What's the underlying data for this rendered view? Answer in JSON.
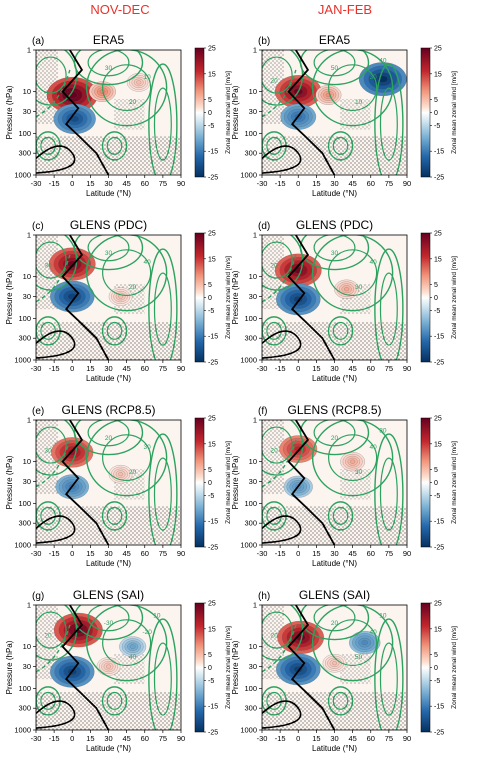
{
  "figure": {
    "column_titles": [
      "NOV-DEC",
      "JAN-FEB"
    ],
    "title_color": "#e8322a"
  },
  "chart_data": [
    {
      "type": "heatmap",
      "panel_letter": "(a)",
      "title": "ERA5",
      "xlabel": "Latitude (°N)",
      "ylabel": "Pressure (hPa)",
      "x_ticks": [
        "-30",
        "-15",
        "0",
        "15",
        "30",
        "45",
        "60",
        "75",
        "90"
      ],
      "y_ticks": [
        "1",
        "10",
        "30",
        "100",
        "300",
        "1000"
      ],
      "xlim": [
        -30,
        90
      ],
      "ylim": [
        1000,
        1
      ],
      "y_scale": "log",
      "colorbar": {
        "label": "Zonal mean zonal wind [m/s]",
        "ticks": [
          "25",
          "15",
          "5",
          "0",
          "-5",
          "-15",
          "-25"
        ],
        "range": [
          -25,
          25
        ]
      },
      "blobs": [
        {
          "lat": 0,
          "p": 12,
          "value": 28
        },
        {
          "lat": 2,
          "p": 45,
          "value": -20
        },
        {
          "lat": 25,
          "p": 10,
          "value": 6
        },
        {
          "lat": 55,
          "p": 6,
          "value": 3
        }
      ],
      "green_contour_labels": [
        "30",
        "10",
        "20"
      ]
    },
    {
      "type": "heatmap",
      "panel_letter": "(b)",
      "title": "ERA5",
      "xlabel": "Latitude (°N)",
      "ylabel": "Pressure (hPa)",
      "x_ticks": [
        "-30",
        "-15",
        "0",
        "15",
        "30",
        "45",
        "60",
        "75",
        "90"
      ],
      "y_ticks": [
        "1",
        "10",
        "30",
        "100",
        "300",
        "1000"
      ],
      "xlim": [
        -30,
        90
      ],
      "ylim": [
        1000,
        1
      ],
      "y_scale": "log",
      "colorbar": {
        "label": "Zonal mean zonal wind [m/s]",
        "ticks": [
          "25",
          "15",
          "5",
          "0",
          "-5",
          "-15",
          "-25"
        ],
        "range": [
          -25,
          25
        ]
      },
      "blobs": [
        {
          "lat": 0,
          "p": 10,
          "value": 24
        },
        {
          "lat": 0,
          "p": 40,
          "value": -14
        },
        {
          "lat": 70,
          "p": 5,
          "value": -25
        },
        {
          "lat": 25,
          "p": 12,
          "value": 5
        }
      ],
      "green_contour_labels": [
        "50",
        "30",
        "10",
        "20",
        "40"
      ]
    },
    {
      "type": "heatmap",
      "panel_letter": "(c)",
      "title": "GLENS (PDC)",
      "xlabel": "Latitude (°N)",
      "ylabel": "Pressure (hPa)",
      "x_ticks": [
        "-30",
        "-15",
        "0",
        "15",
        "30",
        "45",
        "60",
        "75",
        "90"
      ],
      "y_ticks": [
        "1",
        "10",
        "30",
        "100",
        "300",
        "1000"
      ],
      "xlim": [
        -30,
        90
      ],
      "ylim": [
        1000,
        1
      ],
      "y_scale": "log",
      "colorbar": {
        "label": "Zonal mean zonal wind [m/s]",
        "ticks": [
          "25",
          "15",
          "5",
          "0",
          "-5",
          "-15",
          "-25"
        ],
        "range": [
          -25,
          25
        ]
      },
      "blobs": [
        {
          "lat": 0,
          "p": 5,
          "value": 24
        },
        {
          "lat": 0,
          "p": 30,
          "value": -22
        },
        {
          "lat": 40,
          "p": 30,
          "value": 3
        }
      ],
      "green_contour_labels": [
        "30",
        "40",
        "20",
        "30"
      ]
    },
    {
      "type": "heatmap",
      "panel_letter": "(d)",
      "title": "GLENS (PDC)",
      "xlabel": "Latitude (°N)",
      "ylabel": "Pressure (hPa)",
      "x_ticks": [
        "-30",
        "-15",
        "0",
        "15",
        "30",
        "45",
        "60",
        "75",
        "90"
      ],
      "y_ticks": [
        "1",
        "10",
        "30",
        "100",
        "300",
        "1000"
      ],
      "xlim": [
        -30,
        90
      ],
      "ylim": [
        1000,
        1
      ],
      "y_scale": "log",
      "colorbar": {
        "label": "Zonal mean zonal wind [m/s]",
        "ticks": [
          "25",
          "15",
          "5",
          "0",
          "-5",
          "-15",
          "-25"
        ],
        "range": [
          -25,
          25
        ]
      },
      "blobs": [
        {
          "lat": 0,
          "p": 7,
          "value": 24
        },
        {
          "lat": 0,
          "p": 35,
          "value": -22
        },
        {
          "lat": 40,
          "p": 20,
          "value": 4
        }
      ],
      "green_contour_labels": [
        "30",
        "40",
        "30",
        "20"
      ]
    },
    {
      "type": "heatmap",
      "panel_letter": "(e)",
      "title": "GLENS (RCP8.5)",
      "xlabel": "Latitude (°N)",
      "ylabel": "Pressure (hPa)",
      "x_ticks": [
        "-30",
        "-15",
        "0",
        "15",
        "30",
        "45",
        "60",
        "75",
        "90"
      ],
      "y_ticks": [
        "1",
        "10",
        "30",
        "100",
        "300",
        "1000"
      ],
      "xlim": [
        -30,
        90
      ],
      "ylim": [
        1000,
        1
      ],
      "y_scale": "log",
      "colorbar": {
        "label": "Zonal mean zonal wind [m/s]",
        "ticks": [
          "25",
          "15",
          "5",
          "0",
          "-5",
          "-15",
          "-25"
        ],
        "range": [
          -25,
          25
        ]
      },
      "blobs": [
        {
          "lat": 0,
          "p": 6,
          "value": 20
        },
        {
          "lat": 0,
          "p": 40,
          "value": -12
        },
        {
          "lat": 40,
          "p": 20,
          "value": 3
        }
      ],
      "green_contour_labels": [
        "20",
        "30",
        "20",
        "30"
      ]
    },
    {
      "type": "heatmap",
      "panel_letter": "(f)",
      "title": "GLENS (RCP8.5)",
      "xlabel": "Latitude (°N)",
      "ylabel": "Pressure (hPa)",
      "x_ticks": [
        "-30",
        "-15",
        "0",
        "15",
        "30",
        "45",
        "60",
        "75",
        "90"
      ],
      "y_ticks": [
        "1",
        "10",
        "30",
        "100",
        "300",
        "1000"
      ],
      "xlim": [
        -30,
        90
      ],
      "ylim": [
        1000,
        1
      ],
      "y_scale": "log",
      "colorbar": {
        "label": "Zonal mean zonal wind [m/s]",
        "ticks": [
          "25",
          "15",
          "5",
          "0",
          "-5",
          "-15",
          "-25"
        ],
        "range": [
          -25,
          25
        ]
      },
      "blobs": [
        {
          "lat": 0,
          "p": 5,
          "value": 16
        },
        {
          "lat": 0,
          "p": 40,
          "value": -8
        },
        {
          "lat": 45,
          "p": 10,
          "value": 4
        }
      ],
      "green_contour_labels": [
        "20",
        "40",
        "30",
        "20",
        "30"
      ]
    },
    {
      "type": "heatmap",
      "panel_letter": "(g)",
      "title": "GLENS (SAI)",
      "xlabel": "Latitude (°N)",
      "ylabel": "Pressure (hPa)",
      "x_ticks": [
        "-30",
        "-15",
        "0",
        "15",
        "30",
        "45",
        "60",
        "75",
        "90"
      ],
      "y_ticks": [
        "1",
        "10",
        "30",
        "100",
        "300",
        "1000"
      ],
      "xlim": [
        -30,
        90
      ],
      "ylim": [
        1000,
        1
      ],
      "y_scale": "log",
      "colorbar": {
        "label": "Zonal mean zonal wind [m/s]",
        "ticks": [
          "25",
          "15",
          "5",
          "0",
          "-5",
          "-15",
          "-25"
        ],
        "range": [
          -25,
          25
        ]
      },
      "blobs": [
        {
          "lat": 5,
          "p": 4,
          "value": 26
        },
        {
          "lat": 0,
          "p": 40,
          "value": -22
        },
        {
          "lat": 50,
          "p": 10,
          "value": -6
        },
        {
          "lat": 30,
          "p": 30,
          "value": 3
        }
      ],
      "green_contour_labels": [
        "-30",
        "-20",
        "40",
        "20",
        "10"
      ]
    },
    {
      "type": "heatmap",
      "panel_letter": "(h)",
      "title": "GLENS (SAI)",
      "xlabel": "Latitude (°N)",
      "ylabel": "Pressure (hPa)",
      "x_ticks": [
        "-30",
        "-15",
        "0",
        "15",
        "30",
        "45",
        "60",
        "75",
        "90"
      ],
      "y_ticks": [
        "1",
        "10",
        "30",
        "100",
        "300",
        "1000"
      ],
      "xlim": [
        -30,
        90
      ],
      "ylim": [
        1000,
        1
      ],
      "y_scale": "log",
      "colorbar": {
        "label": "Zonal mean zonal wind [m/s]",
        "ticks": [
          "25",
          "15",
          "5",
          "0",
          "-5",
          "-15",
          "-25"
        ],
        "range": [
          -25,
          25
        ]
      },
      "blobs": [
        {
          "lat": 2,
          "p": 6,
          "value": 24
        },
        {
          "lat": 0,
          "p": 35,
          "value": -22
        },
        {
          "lat": 55,
          "p": 8,
          "value": -10
        },
        {
          "lat": 30,
          "p": 25,
          "value": 3
        }
      ],
      "green_contour_labels": [
        "20",
        "40",
        "50",
        "20",
        "10"
      ]
    }
  ]
}
